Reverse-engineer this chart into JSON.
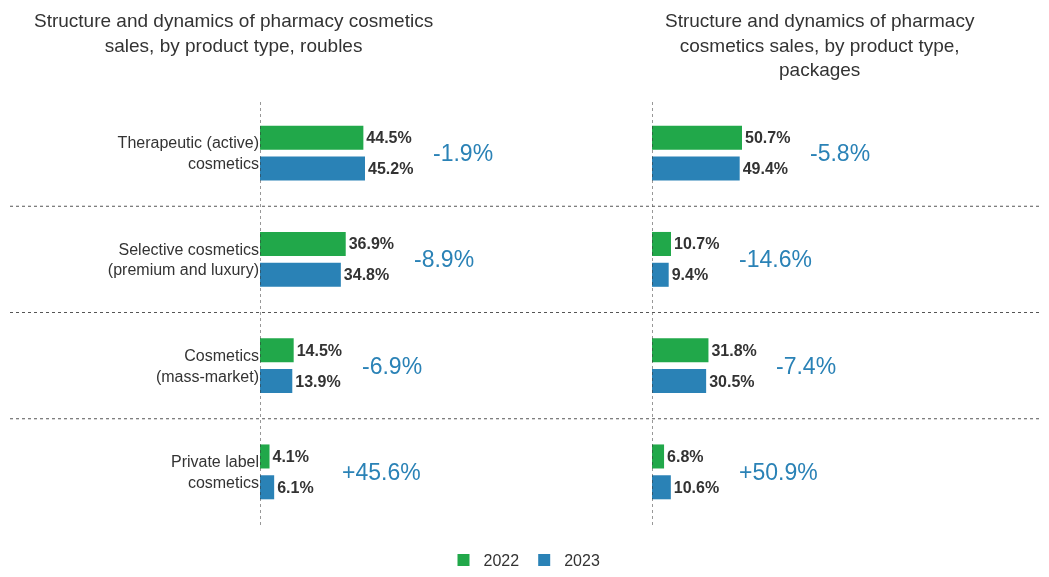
{
  "chart_data": [
    {
      "type": "bar",
      "orientation": "horizontal",
      "title": "Structure and dynamics of pharmacy cosmetics sales, by product type, roubles",
      "categories": [
        "Therapeutic (active) cosmetics",
        "Selective cosmetics (premium and luxury)",
        "Cosmetics (mass-market)",
        "Private label cosmetics"
      ],
      "series": [
        {
          "name": "2022",
          "color": "#21a84a",
          "values": [
            44.5,
            36.9,
            14.5,
            4.1
          ],
          "value_labels": [
            "44.5%",
            "36.9%",
            "14.5%",
            "4.1%"
          ]
        },
        {
          "name": "2023",
          "color": "#2a82b6",
          "values": [
            45.2,
            34.8,
            13.9,
            6.1
          ],
          "value_labels": [
            "45.2%",
            "34.8%",
            "13.9%",
            "6.1%"
          ]
        }
      ],
      "annotations": [
        "-1.9%",
        "-8.9%",
        "-6.9%",
        "+45.6%"
      ],
      "tick_labels": "y",
      "legend": "bottom",
      "grid": false
    },
    {
      "type": "bar",
      "orientation": "horizontal",
      "title": "Structure and dynamics of pharmacy cosmetics sales, by product type, packages",
      "categories": [
        null,
        null,
        null,
        null
      ],
      "series": [
        {
          "name": "2022",
          "color": "#21a84a",
          "values": [
            50.7,
            10.7,
            31.8,
            6.8
          ],
          "value_labels": [
            "50.7%",
            "10.7%",
            "31.8%",
            "6.8%"
          ]
        },
        {
          "name": "2023",
          "color": "#2a82b6",
          "values": [
            49.4,
            9.4,
            30.5,
            10.6
          ],
          "value_labels": [
            "49.4%",
            "9.4%",
            "30.5%",
            "10.6%"
          ]
        }
      ],
      "annotations": [
        "-5.8%",
        "-14.6%",
        "-7.4%",
        "+50.9%"
      ],
      "tick_labels": false,
      "legend": false,
      "grid": false
    }
  ]
}
